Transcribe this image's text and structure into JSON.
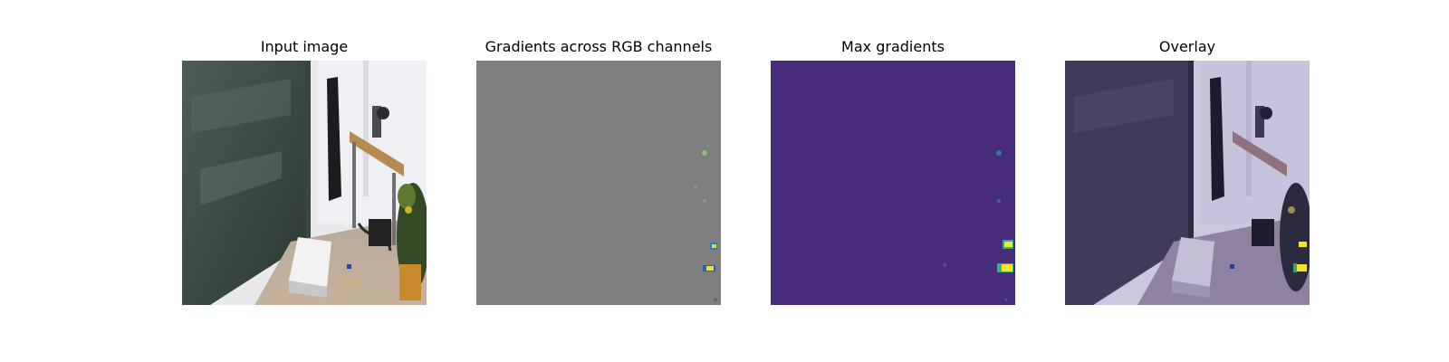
{
  "panels": [
    {
      "title": "Input image"
    },
    {
      "title": "Gradients across RGB channels"
    },
    {
      "title": "Max gradients"
    },
    {
      "title": "Overlay"
    }
  ],
  "colors": {
    "background": "#ffffff",
    "gradient_gray": "#7f7f7f",
    "viridis_low": "#472c7a",
    "viridis_mid": "#21918c",
    "viridis_high": "#fde725",
    "overlay_tint": "#9a8fc8"
  },
  "icons": []
}
